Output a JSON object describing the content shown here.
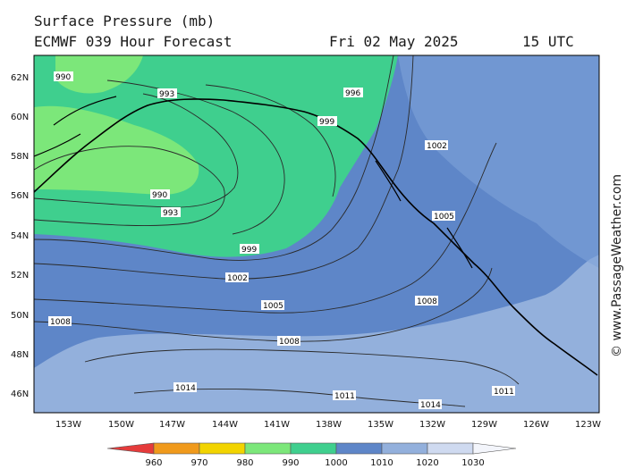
{
  "header": {
    "title": "Surface Pressure (mb)",
    "model": "ECMWF 039 Hour Forecast",
    "date": "Fri 02 May 2025",
    "time": "15 UTC"
  },
  "credit": "© www.PassageWeather.com",
  "map": {
    "lat_labels": [
      "62N",
      "60N",
      "58N",
      "56N",
      "54N",
      "52N",
      "50N",
      "48N",
      "46N"
    ],
    "lon_labels": [
      "153W",
      "150W",
      "147W",
      "144W",
      "141W",
      "138W",
      "135W",
      "132W",
      "129W",
      "126W",
      "123W"
    ],
    "isobars": [
      {
        "value": "990"
      },
      {
        "value": "993"
      },
      {
        "value": "996"
      },
      {
        "value": "999"
      },
      {
        "value": "1002"
      },
      {
        "value": "1005"
      },
      {
        "value": "1008"
      },
      {
        "value": "1011"
      },
      {
        "value": "1014"
      }
    ]
  },
  "legend": {
    "ticks": [
      "960",
      "970",
      "980",
      "990",
      "1000",
      "1010",
      "1020",
      "1030"
    ],
    "colors": [
      "#e53b3b",
      "#f09a1c",
      "#f2d400",
      "#7ce77a",
      "#3fcf8e",
      "#5e86c8",
      "#93b0dc",
      "#cfdaf0",
      "#f3f5fb"
    ]
  }
}
